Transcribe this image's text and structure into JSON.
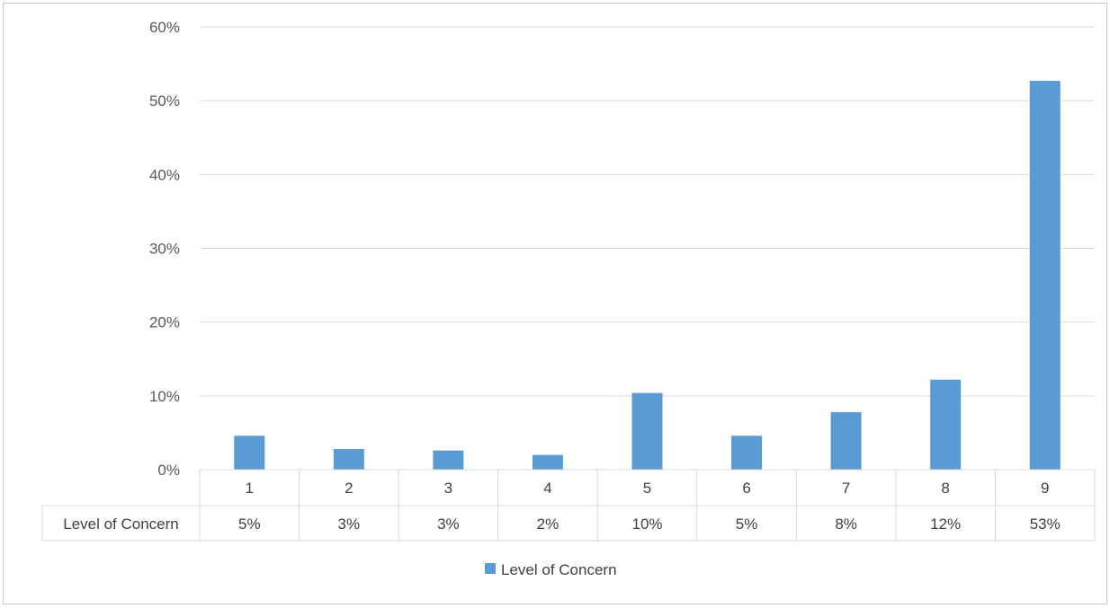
{
  "chart_data": {
    "type": "bar",
    "title": "",
    "xlabel": "",
    "ylabel": "",
    "categories": [
      "1",
      "2",
      "3",
      "4",
      "5",
      "6",
      "7",
      "8",
      "9"
    ],
    "series": [
      {
        "name": "Level of Concern",
        "values": [
          4.6,
          2.8,
          2.6,
          2.0,
          10.4,
          4.6,
          7.8,
          12.2,
          52.7
        ],
        "value_labels": [
          "5%",
          "3%",
          "3%",
          "2%",
          "10%",
          "5%",
          "8%",
          "12%",
          "53%"
        ],
        "color": "#5b9bd5"
      }
    ],
    "ylim": [
      0,
      60
    ],
    "yticks": [
      0,
      10,
      20,
      30,
      40,
      50,
      60
    ],
    "ytick_labels": [
      "0%",
      "10%",
      "20%",
      "30%",
      "40%",
      "50%",
      "60%"
    ],
    "grid": true,
    "data_table": true,
    "legend": "bottom-center"
  },
  "colors": {
    "bar": "#5b9bd5",
    "grid": "#d9d9d9",
    "frame": "#c8c8c8"
  }
}
